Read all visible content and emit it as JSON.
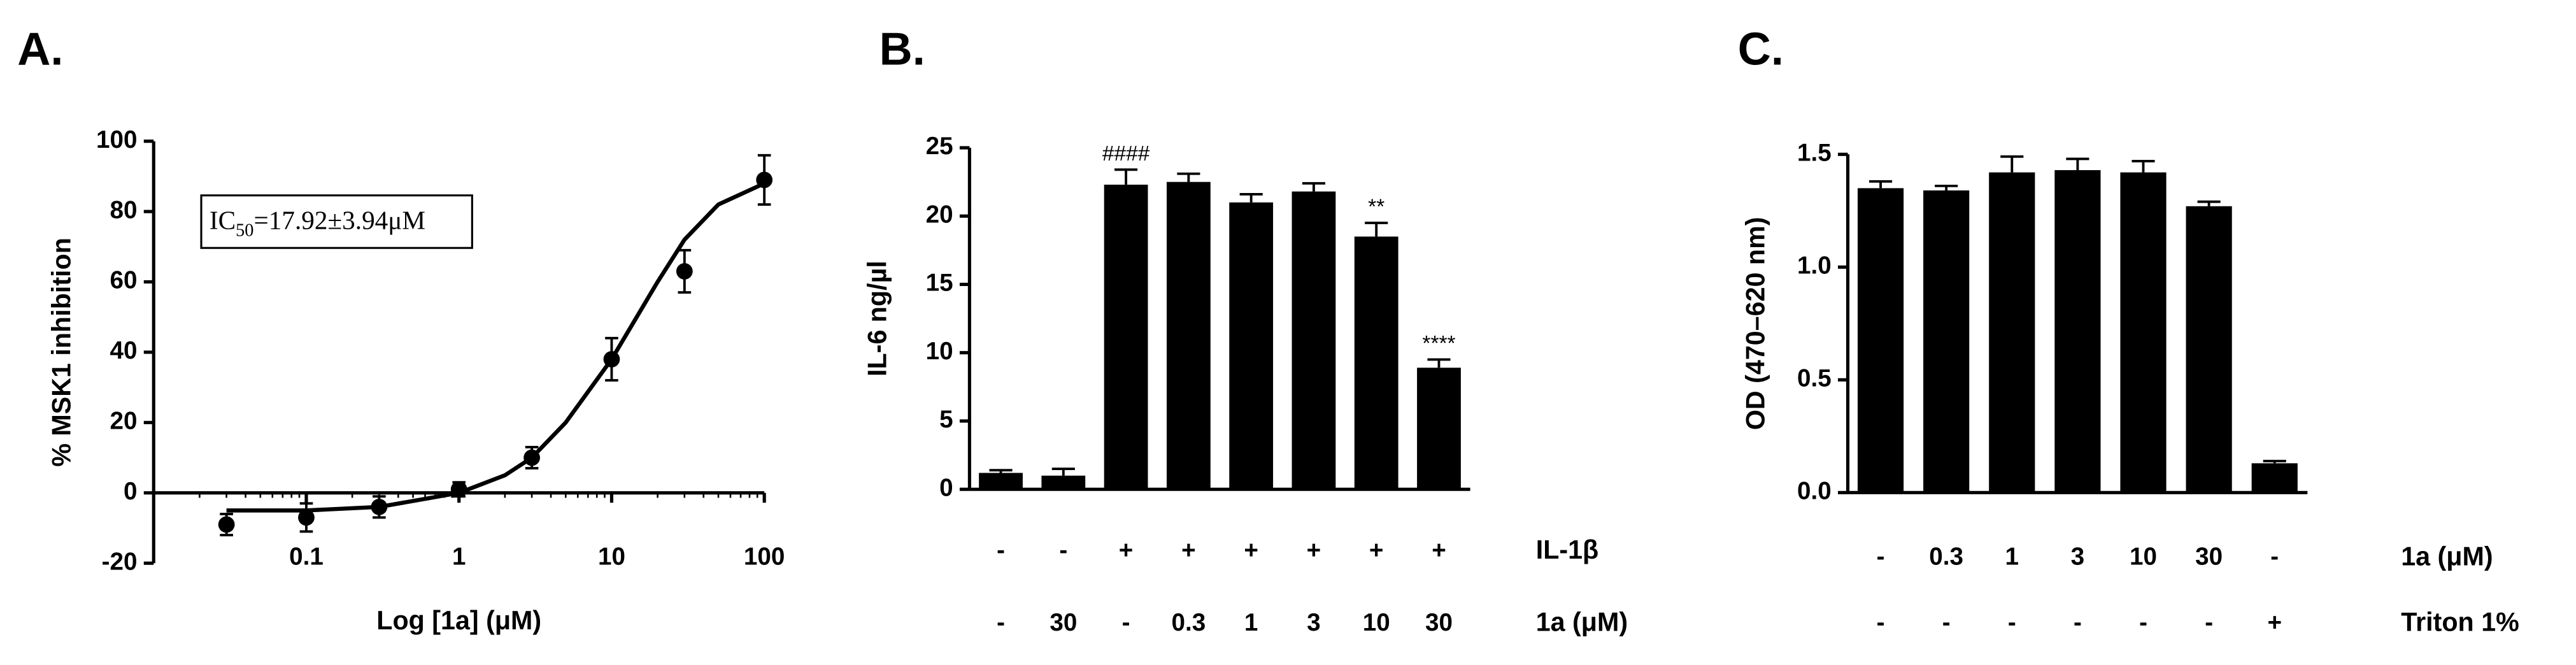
{
  "chart_data": [
    {
      "type": "scatter",
      "panel": "A.",
      "ylabel": "% MSK1 inhibition",
      "xlabel": "Log [1a] (μM)",
      "annotation": [
        "IC",
        "50",
        "=17.92±3.94μM"
      ],
      "log_x": true,
      "x": [
        0.03,
        0.1,
        0.3,
        1,
        3,
        10,
        30,
        100
      ],
      "values": [
        -9,
        -7,
        -4,
        1,
        10,
        38,
        63,
        89
      ],
      "errors": [
        3,
        4,
        3,
        2,
        3,
        6,
        6,
        7
      ],
      "curve": {
        "x": [
          0.03,
          0.1,
          0.3,
          1,
          2,
          3,
          5,
          10,
          20,
          30,
          50,
          100
        ],
        "y": [
          -5,
          -5,
          -4,
          0,
          5,
          10,
          20,
          38,
          60,
          72,
          82,
          88
        ]
      },
      "color": "#000000",
      "xlim": [
        0.01,
        100
      ],
      "xticks": [
        0.1,
        1,
        10,
        100
      ],
      "ylim": [
        -20,
        100
      ],
      "yticks": [
        -20,
        0,
        20,
        40,
        60,
        80,
        100
      ]
    },
    {
      "type": "bar",
      "panel": "B.",
      "ylabel": "IL-6 ng/µl",
      "values": [
        1.2,
        1.0,
        22.3,
        22.5,
        21.0,
        21.8,
        18.5,
        8.9
      ],
      "errors": [
        0.2,
        0.5,
        1.1,
        0.6,
        0.6,
        0.6,
        1.0,
        0.6
      ],
      "significance": [
        null,
        null,
        "####",
        null,
        null,
        null,
        "**",
        "****"
      ],
      "conditions": [
        {
          "label": "IL-1β",
          "cells": [
            "-",
            "-",
            "+",
            "+",
            "+",
            "+",
            "+",
            "+"
          ]
        },
        {
          "label": "1a (μM)",
          "cells": [
            "-",
            "30",
            "-",
            "0.3",
            "1",
            "3",
            "10",
            "30"
          ]
        }
      ],
      "color": "#000000",
      "ylim": [
        0,
        25
      ],
      "yticks": [
        0,
        5,
        10,
        15,
        20,
        25
      ]
    },
    {
      "type": "bar",
      "panel": "C.",
      "ylabel": "OD (470–620 nm)",
      "values": [
        1.35,
        1.34,
        1.42,
        1.43,
        1.42,
        1.27,
        0.13
      ],
      "errors": [
        0.03,
        0.02,
        0.07,
        0.05,
        0.05,
        0.02,
        0.01
      ],
      "conditions": [
        {
          "label": "1a (μM)",
          "cells": [
            "-",
            "0.3",
            "1",
            "3",
            "10",
            "30",
            "-"
          ]
        },
        {
          "label": "Triton 1%",
          "cells": [
            "-",
            "-",
            "-",
            "-",
            "-",
            "-",
            "+"
          ]
        }
      ],
      "color": "#000000",
      "ylim": [
        0,
        1.5
      ],
      "yticks": [
        {
          "value": 0,
          "label": "0.0"
        },
        0.5,
        {
          "value": 1,
          "label": "1.0"
        },
        1.5
      ]
    }
  ]
}
